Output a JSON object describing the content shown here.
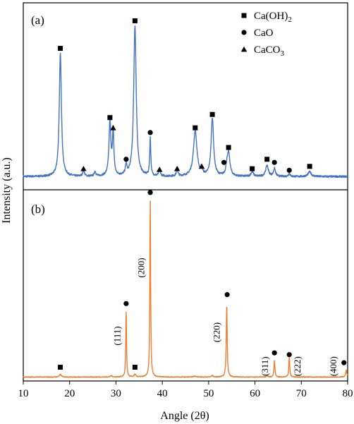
{
  "chart_data": {
    "type": "line",
    "xlabel": "Angle (2θ)",
    "ylabel": "Intensity (a.u.)",
    "xlim": [
      10,
      80
    ],
    "xticks": [
      10,
      20,
      30,
      40,
      50,
      60,
      70,
      80
    ],
    "legend_placement": "top-right",
    "legend": [
      {
        "marker": "square",
        "label": "Ca(OH)",
        "sub": "2"
      },
      {
        "marker": "circle",
        "label": "CaO",
        "sub": ""
      },
      {
        "marker": "triangle",
        "label": "CaCO",
        "sub": "3"
      }
    ],
    "panels": [
      {
        "label": "(a)",
        "color": "#4472c4",
        "ylim": [
          0,
          1
        ],
        "baseline": 0.03,
        "peaks": [
          {
            "x": 18.0,
            "y": 0.78,
            "w": 0.28
          },
          {
            "x": 23.0,
            "y": 0.04,
            "w": 0.2
          },
          {
            "x": 25.5,
            "y": 0.03,
            "w": 0.2
          },
          {
            "x": 28.7,
            "y": 0.34,
            "w": 0.25
          },
          {
            "x": 29.4,
            "y": 0.28,
            "w": 0.18
          },
          {
            "x": 32.2,
            "y": 0.06,
            "w": 0.2
          },
          {
            "x": 34.1,
            "y": 0.96,
            "w": 0.32
          },
          {
            "x": 37.4,
            "y": 0.24,
            "w": 0.14
          },
          {
            "x": 39.4,
            "y": 0.04,
            "w": 0.2
          },
          {
            "x": 43.2,
            "y": 0.04,
            "w": 0.2
          },
          {
            "x": 47.1,
            "y": 0.29,
            "w": 0.45
          },
          {
            "x": 48.5,
            "y": 0.04,
            "w": 0.2
          },
          {
            "x": 50.8,
            "y": 0.37,
            "w": 0.32
          },
          {
            "x": 53.9,
            "y": 0.04,
            "w": 0.2
          },
          {
            "x": 54.3,
            "y": 0.15,
            "w": 0.35
          },
          {
            "x": 59.4,
            "y": 0.03,
            "w": 0.3
          },
          {
            "x": 62.6,
            "y": 0.07,
            "w": 0.35
          },
          {
            "x": 64.2,
            "y": 0.05,
            "w": 0.25
          },
          {
            "x": 67.4,
            "y": 0.02,
            "w": 0.2
          },
          {
            "x": 71.8,
            "y": 0.03,
            "w": 0.4
          }
        ],
        "markers": [
          {
            "type": "square",
            "x": 18.0,
            "y": 0.845
          },
          {
            "type": "triangle",
            "x": 23.0,
            "y": 0.08
          },
          {
            "type": "square",
            "x": 28.7,
            "y": 0.405
          },
          {
            "type": "triangle",
            "x": 29.4,
            "y": 0.34
          },
          {
            "type": "circle",
            "x": 32.2,
            "y": 0.14
          },
          {
            "type": "square",
            "x": 34.1,
            "y": 1.02
          },
          {
            "type": "circle",
            "x": 37.4,
            "y": 0.31
          },
          {
            "type": "triangle",
            "x": 39.4,
            "y": 0.075
          },
          {
            "type": "triangle",
            "x": 43.2,
            "y": 0.08
          },
          {
            "type": "square",
            "x": 47.1,
            "y": 0.34
          },
          {
            "type": "triangle",
            "x": 48.5,
            "y": 0.095
          },
          {
            "type": "square",
            "x": 50.8,
            "y": 0.425
          },
          {
            "type": "circle",
            "x": 53.3,
            "y": 0.12
          },
          {
            "type": "square",
            "x": 54.3,
            "y": 0.215
          },
          {
            "type": "square",
            "x": 59.4,
            "y": 0.08
          },
          {
            "type": "square",
            "x": 62.6,
            "y": 0.14
          },
          {
            "type": "circle",
            "x": 64.2,
            "y": 0.12
          },
          {
            "type": "circle",
            "x": 67.4,
            "y": 0.07
          },
          {
            "type": "square",
            "x": 71.8,
            "y": 0.095
          }
        ],
        "peak_labels": []
      },
      {
        "label": "(b)",
        "color": "#ed7d31",
        "ylim": [
          0,
          1
        ],
        "baseline": 0.01,
        "peaks": [
          {
            "x": 18.0,
            "y": 0.015,
            "w": 0.25
          },
          {
            "x": 29.0,
            "y": 0.008,
            "w": 0.2
          },
          {
            "x": 32.2,
            "y": 0.36,
            "w": 0.1
          },
          {
            "x": 34.1,
            "y": 0.015,
            "w": 0.2
          },
          {
            "x": 37.4,
            "y": 0.98,
            "w": 0.1
          },
          {
            "x": 47.0,
            "y": 0.005,
            "w": 0.3
          },
          {
            "x": 50.8,
            "y": 0.008,
            "w": 0.2
          },
          {
            "x": 53.9,
            "y": 0.4,
            "w": 0.12
          },
          {
            "x": 62.6,
            "y": 0.01,
            "w": 0.15
          },
          {
            "x": 64.2,
            "y": 0.09,
            "w": 0.12
          },
          {
            "x": 67.4,
            "y": 0.11,
            "w": 0.12
          },
          {
            "x": 79.7,
            "y": 0.04,
            "w": 0.15
          }
        ],
        "markers": [
          {
            "type": "square",
            "x": 18.0,
            "y": 0.065
          },
          {
            "type": "square",
            "x": 34.1,
            "y": 0.065
          },
          {
            "type": "circle",
            "x": 32.2,
            "y": 0.42
          },
          {
            "type": "circle",
            "x": 37.4,
            "y": 1.04
          },
          {
            "type": "circle",
            "x": 54.0,
            "y": 0.47
          },
          {
            "type": "circle",
            "x": 64.2,
            "y": 0.145
          },
          {
            "type": "circle",
            "x": 67.4,
            "y": 0.135
          },
          {
            "type": "circle",
            "x": 79.2,
            "y": 0.09
          }
        ],
        "peak_labels": [
          {
            "text": "(111)",
            "x": 30.9,
            "y": 0.24
          },
          {
            "text": "(200)",
            "x": 36.1,
            "y": 0.62
          },
          {
            "text": "(220)",
            "x": 52.4,
            "y": 0.26
          },
          {
            "text": "(311)",
            "x": 62.8,
            "y": 0.07
          },
          {
            "text": "(222)",
            "x": 69.8,
            "y": 0.07
          },
          {
            "text": "(400)",
            "x": 77.6,
            "y": 0.07
          }
        ]
      }
    ]
  }
}
